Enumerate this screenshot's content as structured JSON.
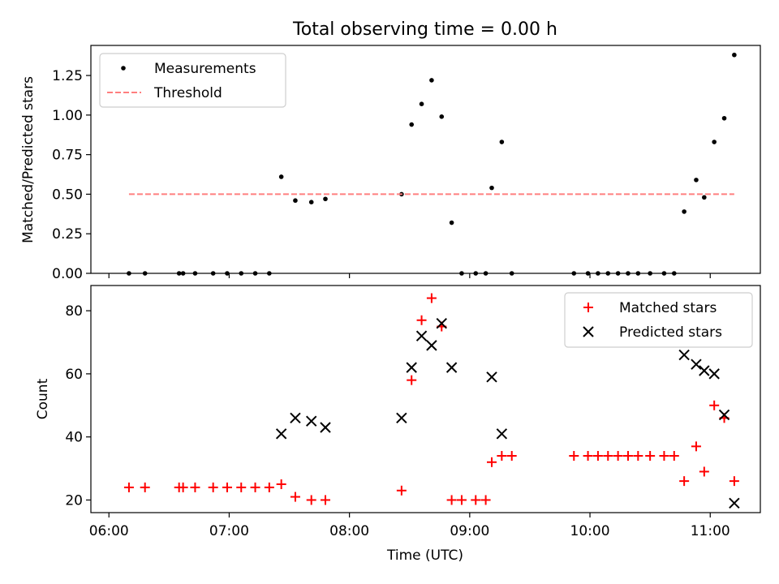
{
  "chart_data": [
    {
      "type": "scatter",
      "title": "Total observing time = 0.00 h",
      "xlabel": "",
      "ylabel": "Matched/Predicted stars",
      "ylim": [
        0,
        1.44
      ],
      "yticks": [
        "0.00",
        "0.25",
        "0.50",
        "0.75",
        "1.00",
        "1.25"
      ],
      "ytick_values": [
        0,
        0.25,
        0.5,
        0.75,
        1.0,
        1.25
      ],
      "legend_position": "top-left",
      "series": [
        {
          "name": "Measurements",
          "marker": "dot",
          "color": "#000000",
          "points": [
            [
              "06:10",
              0
            ],
            [
              "06:18",
              0
            ],
            [
              "06:35",
              0
            ],
            [
              "06:37",
              0
            ],
            [
              "06:43",
              0
            ],
            [
              "06:52",
              0
            ],
            [
              "06:59",
              0
            ],
            [
              "07:06",
              0
            ],
            [
              "07:13",
              0
            ],
            [
              "07:20",
              0
            ],
            [
              "07:26",
              0.61
            ],
            [
              "07:33",
              0.46
            ],
            [
              "07:41",
              0.45
            ],
            [
              "07:48",
              0.47
            ],
            [
              "08:26",
              0.5
            ],
            [
              "08:31",
              0.94
            ],
            [
              "08:36",
              1.07
            ],
            [
              "08:41",
              1.22
            ],
            [
              "08:46",
              0.99
            ],
            [
              "08:51",
              0.32
            ],
            [
              "08:56",
              0
            ],
            [
              "09:03",
              0
            ],
            [
              "09:08",
              0
            ],
            [
              "09:11",
              0.54
            ],
            [
              "09:16",
              0.83
            ],
            [
              "09:21",
              0
            ],
            [
              "09:52",
              0
            ],
            [
              "09:59",
              0
            ],
            [
              "10:04",
              0
            ],
            [
              "10:09",
              0
            ],
            [
              "10:14",
              0
            ],
            [
              "10:19",
              0
            ],
            [
              "10:24",
              0
            ],
            [
              "10:30",
              0
            ],
            [
              "10:37",
              0
            ],
            [
              "10:42",
              0
            ],
            [
              "10:47",
              0.39
            ],
            [
              "10:53",
              0.59
            ],
            [
              "10:57",
              0.48
            ],
            [
              "11:02",
              0.83
            ],
            [
              "11:07",
              0.98
            ],
            [
              "11:12",
              1.38
            ]
          ]
        },
        {
          "name": "Threshold",
          "marker": "dashed-line",
          "color": "#ff7f7f",
          "points": [
            [
              "06:10",
              0.5
            ],
            [
              "11:12",
              0.5
            ]
          ]
        }
      ]
    },
    {
      "type": "scatter",
      "title": "",
      "xlabel": "Time (UTC)",
      "ylabel": "Count",
      "ylim": [
        16,
        88
      ],
      "yticks": [
        "20",
        "40",
        "60",
        "80"
      ],
      "ytick_values": [
        20,
        40,
        60,
        80
      ],
      "xticks": [
        "06:00",
        "07:00",
        "08:00",
        "09:00",
        "10:00",
        "11:00"
      ],
      "xlim": [
        "05:51",
        "11:25"
      ],
      "legend_position": "top-right",
      "series": [
        {
          "name": "Matched stars",
          "marker": "plus",
          "color": "#ff0000",
          "points": [
            [
              "06:10",
              24
            ],
            [
              "06:18",
              24
            ],
            [
              "06:35",
              24
            ],
            [
              "06:37",
              24
            ],
            [
              "06:43",
              24
            ],
            [
              "06:52",
              24
            ],
            [
              "06:59",
              24
            ],
            [
              "07:06",
              24
            ],
            [
              "07:13",
              24
            ],
            [
              "07:20",
              24
            ],
            [
              "07:26",
              25
            ],
            [
              "07:33",
              21
            ],
            [
              "07:41",
              20
            ],
            [
              "07:48",
              20
            ],
            [
              "08:26",
              23
            ],
            [
              "08:31",
              58
            ],
            [
              "08:36",
              77
            ],
            [
              "08:41",
              84
            ],
            [
              "08:46",
              75
            ],
            [
              "08:51",
              20
            ],
            [
              "08:56",
              20
            ],
            [
              "09:03",
              20
            ],
            [
              "09:08",
              20
            ],
            [
              "09:11",
              32
            ],
            [
              "09:16",
              34
            ],
            [
              "09:21",
              34
            ],
            [
              "09:52",
              34
            ],
            [
              "09:59",
              34
            ],
            [
              "10:04",
              34
            ],
            [
              "10:09",
              34
            ],
            [
              "10:14",
              34
            ],
            [
              "10:19",
              34
            ],
            [
              "10:24",
              34
            ],
            [
              "10:30",
              34
            ],
            [
              "10:37",
              34
            ],
            [
              "10:42",
              34
            ],
            [
              "10:47",
              26
            ],
            [
              "10:53",
              37
            ],
            [
              "10:57",
              29
            ],
            [
              "11:02",
              50
            ],
            [
              "11:07",
              46
            ],
            [
              "11:12",
              26
            ]
          ]
        },
        {
          "name": "Predicted stars",
          "marker": "x",
          "color": "#000000",
          "points": [
            [
              "07:26",
              41
            ],
            [
              "07:33",
              46
            ],
            [
              "07:41",
              45
            ],
            [
              "07:48",
              43
            ],
            [
              "08:26",
              46
            ],
            [
              "08:31",
              62
            ],
            [
              "08:36",
              72
            ],
            [
              "08:41",
              69
            ],
            [
              "08:46",
              76
            ],
            [
              "08:51",
              62
            ],
            [
              "09:11",
              59
            ],
            [
              "09:16",
              41
            ],
            [
              "10:47",
              66
            ],
            [
              "10:53",
              63
            ],
            [
              "10:57",
              61
            ],
            [
              "11:02",
              60
            ],
            [
              "11:07",
              47
            ],
            [
              "11:12",
              19
            ]
          ]
        }
      ]
    }
  ]
}
